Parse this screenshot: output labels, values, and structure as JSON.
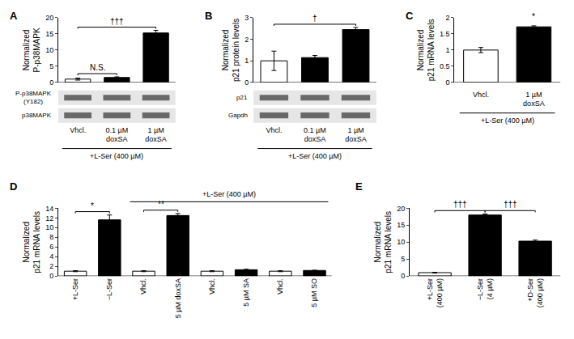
{
  "chart_data": [
    {
      "type": "bar",
      "title": "A",
      "y_label": "Normalized P-p38MAPK",
      "categories": [
        "Vhcl.",
        "0.1 µM doxSA",
        "1 µM doxSA"
      ],
      "values": [
        1.0,
        1.5,
        15.3
      ],
      "errors": [
        0.3,
        0.2,
        0.8
      ],
      "colors": [
        "#ffffff",
        "#000000",
        "#000000"
      ],
      "ylim": [
        0,
        20
      ],
      "yticks": [
        0,
        5,
        10,
        15,
        20
      ],
      "grid": false,
      "blots": [
        "P-p38MAPK (Y182)",
        "p38MAPK"
      ],
      "group_label": "+L-Ser (400 µM)",
      "group_span": [
        0,
        2
      ],
      "annotations": [
        {
          "text": "N.S.",
          "between": [
            0,
            1
          ]
        },
        {
          "text": "†††",
          "between": [
            0,
            2
          ]
        }
      ]
    },
    {
      "type": "bar",
      "title": "B",
      "y_label": "Normalized p21 protein levels",
      "categories": [
        "Vhcl.",
        "0.1 µM doxSA",
        "1 µM doxSA"
      ],
      "values": [
        1.0,
        1.15,
        2.45
      ],
      "errors": [
        0.45,
        0.1,
        0.1
      ],
      "colors": [
        "#ffffff",
        "#000000",
        "#000000"
      ],
      "ylim": [
        0,
        3
      ],
      "yticks": [
        0,
        1,
        2,
        3
      ],
      "grid": false,
      "blots": [
        "p21",
        "Gapdh"
      ],
      "group_label": "+L-Ser (400 µM)",
      "group_span": [
        0,
        2
      ],
      "annotations": [
        {
          "text": "†",
          "between": [
            0,
            2
          ]
        }
      ]
    },
    {
      "type": "bar",
      "title": "C",
      "y_label": "Normalized p21 mRNA levels",
      "categories": [
        "Vhcl.",
        "1 µM doxSA"
      ],
      "values": [
        1.0,
        1.72
      ],
      "errors": [
        0.08,
        0.03
      ],
      "colors": [
        "#ffffff",
        "#000000"
      ],
      "ylim": [
        0,
        2
      ],
      "yticks": [
        0,
        0.5,
        1,
        1.5,
        2
      ],
      "grid": false,
      "group_label": "+L-Ser (400 µM)",
      "group_span": [
        0,
        1
      ],
      "annotations": [
        {
          "text": "*",
          "between": [
            1,
            1
          ]
        }
      ]
    },
    {
      "type": "bar",
      "title": "D",
      "y_label": "Normalized p21 mRNA levels",
      "categories": [
        "+L-Ser",
        "−L-Ser",
        "Vhcl.",
        "5 µM doxSA",
        "Vhcl.",
        "5 µM SA",
        "Vhcl.",
        "5 µM SO"
      ],
      "values": [
        1.0,
        11.6,
        1.0,
        12.5,
        1.0,
        1.3,
        1.0,
        1.15
      ],
      "errors": [
        0.1,
        1.0,
        0.1,
        0.4,
        0.1,
        0.1,
        0.1,
        0.05
      ],
      "colors": [
        "#ffffff",
        "#000000",
        "#ffffff",
        "#000000",
        "#ffffff",
        "#000000",
        "#ffffff",
        "#000000"
      ],
      "ylim": [
        0,
        14
      ],
      "yticks": [
        0,
        2,
        4,
        6,
        8,
        10,
        12,
        14
      ],
      "grid": false,
      "group_label": "+L-Ser (400 µM)",
      "group_span": [
        2,
        7
      ],
      "annotations": [
        {
          "text": "*",
          "between": [
            0,
            1
          ]
        },
        {
          "text": "**",
          "between": [
            2,
            3
          ]
        }
      ]
    },
    {
      "type": "bar",
      "title": "E",
      "y_label": "Normalized p21 mRNA levels",
      "categories": [
        "+L-Ser (400 µM)",
        "−L-Ser (4 µM)",
        "+D-Ser (400 µM)"
      ],
      "values": [
        1.0,
        18.0,
        10.3
      ],
      "errors": [
        0.1,
        0.3,
        0.3
      ],
      "colors": [
        "#ffffff",
        "#000000",
        "#000000"
      ],
      "ylim": [
        0,
        20
      ],
      "yticks": [
        0,
        5,
        10,
        15,
        20
      ],
      "grid": false,
      "annotations": [
        {
          "text": "†††",
          "between": [
            0,
            1
          ]
        },
        {
          "text": "†††",
          "between": [
            1,
            2
          ]
        }
      ]
    }
  ]
}
